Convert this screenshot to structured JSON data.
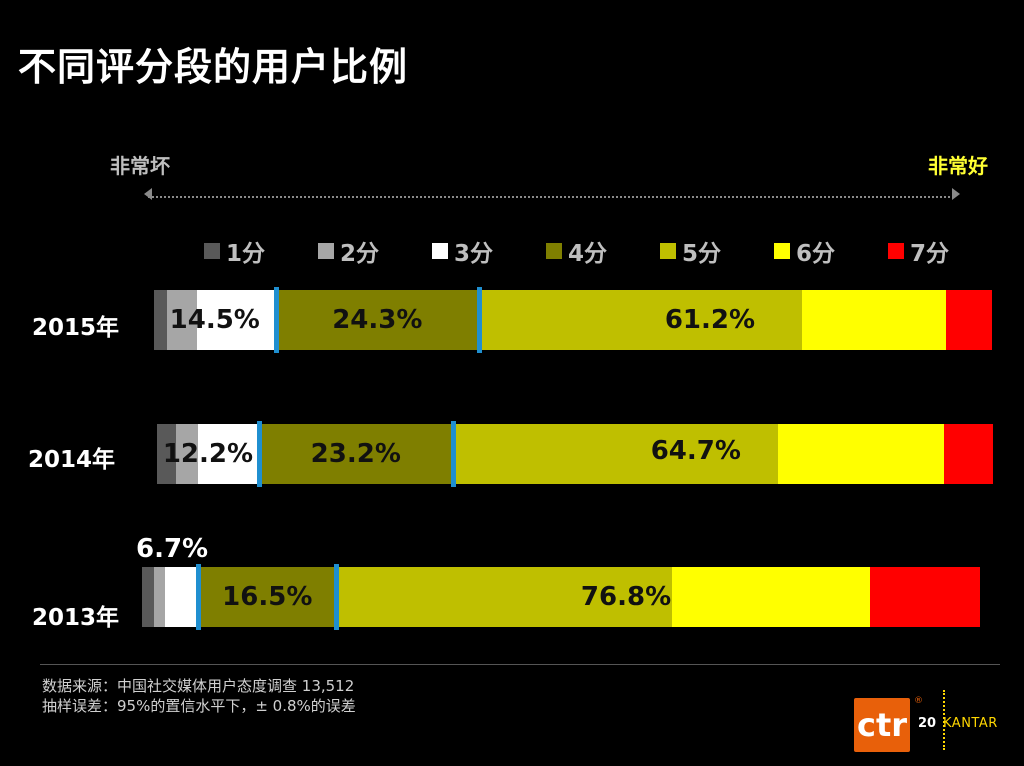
{
  "title": "不同评分段的用户比例",
  "scale": {
    "left": "非常坏",
    "right": "非常好"
  },
  "legend": [
    {
      "label": "1分",
      "color": "#595959"
    },
    {
      "label": "2分",
      "color": "#a6a6a6"
    },
    {
      "label": "3分",
      "color": "#ffffff"
    },
    {
      "label": "4分",
      "color": "#7f7f00"
    },
    {
      "label": "5分",
      "color": "#bfbf00"
    },
    {
      "label": "6分",
      "color": "#ffff00"
    },
    {
      "label": "7分",
      "color": "#ff0000"
    }
  ],
  "chart_data": {
    "type": "bar",
    "orientation": "horizontal-stacked",
    "categories": [
      "2015年",
      "2014年",
      "2013年"
    ],
    "series": [
      {
        "name": "1分",
        "values": [
          1.5,
          2.3,
          1.4
        ]
      },
      {
        "name": "2分",
        "values": [
          3.6,
          2.6,
          1.4
        ]
      },
      {
        "name": "3分",
        "values": [
          9.4,
          7.3,
          3.9
        ]
      },
      {
        "name": "4分",
        "values": [
          24.3,
          23.2,
          16.5
        ]
      },
      {
        "name": "5分",
        "values": [
          38.5,
          39.0,
          40.0
        ]
      },
      {
        "name": "6分",
        "values": [
          17.2,
          19.8,
          23.7
        ]
      },
      {
        "name": "7分",
        "values": [
          5.5,
          5.9,
          13.1
        ]
      }
    ],
    "group_labels": [
      {
        "group": "1-3分",
        "values": [
          "14.5%",
          "12.2%",
          "6.7%"
        ]
      },
      {
        "group": "4分",
        "values": [
          "24.3%",
          "23.2%",
          "16.5%"
        ]
      },
      {
        "group": "5-7分",
        "values": [
          "61.2%",
          "64.7%",
          "76.8%"
        ]
      }
    ],
    "xlim": [
      0,
      100
    ]
  },
  "footer": {
    "source": "数据来源：中国社交媒体用户态度调查  13,512",
    "error": "抽样误差：95%的置信水平下，± 0.8%的误差",
    "logo": "ctr",
    "reg": "®",
    "page": "20",
    "brand": "KANTAR"
  }
}
